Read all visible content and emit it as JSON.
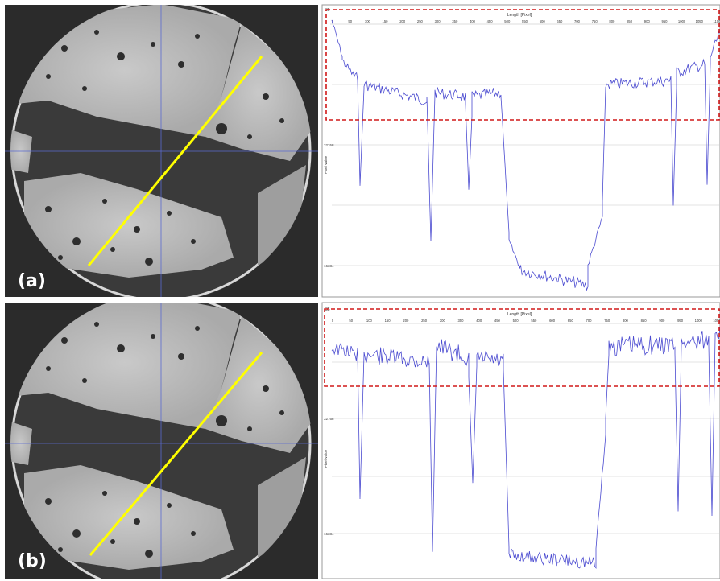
{
  "panels": [
    {
      "label": "(a)",
      "plot": {
        "top_left_text": "35",
        "x_axis_title": "Length [Pixel]",
        "x_ticks": [
          "0",
          "50",
          "100",
          "150",
          "200",
          "250",
          "300",
          "350",
          "400",
          "450",
          "500",
          "550",
          "600",
          "650",
          "700",
          "750",
          "800",
          "850",
          "900",
          "950",
          "1000",
          "1050",
          "1100"
        ],
        "y_axis_title": "Pixel Value",
        "y_labels": [
          "32768",
          "16384"
        ]
      }
    },
    {
      "label": "(b)",
      "plot": {
        "top_left_text": "35",
        "x_axis_title": "Length [Pixel]",
        "x_ticks": [
          "0",
          "50",
          "100",
          "150",
          "200",
          "250",
          "300",
          "350",
          "400",
          "450",
          "500",
          "550",
          "600",
          "650",
          "700",
          "750",
          "800",
          "850",
          "900",
          "950",
          "1000",
          "1050"
        ],
        "y_axis_title": "Pixel Value",
        "y_labels": [
          "32768",
          "16384"
        ]
      }
    }
  ],
  "colors": {
    "profile_line": "#ffff00",
    "plot_trace": "#4a4ad0",
    "highlight_box": "#d01818",
    "crosshair": "#5a6ad0",
    "scan_bg": "#2b2b2b",
    "sample_bright": "#b9b9b9",
    "sample_dark": "#3b3b3b"
  }
}
